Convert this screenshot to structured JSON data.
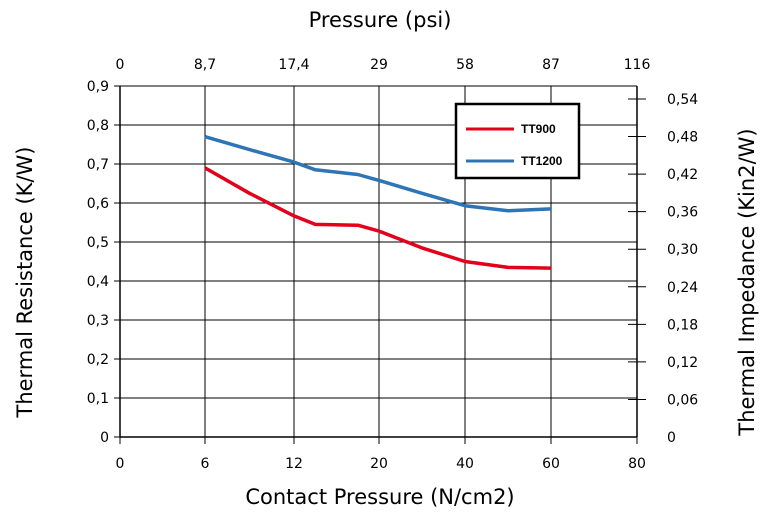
{
  "chart_data": {
    "type": "line",
    "title": "",
    "x_label": "Contact Pressure (N/cm2)",
    "x2_label": "Pressure (psi)",
    "y_label": "Thermal Resistance (K/W)",
    "y2_label": "Thermal Impedance (Kin2/W)",
    "x_tick_labels": [
      "0",
      "6",
      "12",
      "20",
      "40",
      "60",
      "80"
    ],
    "x2_tick_labels": [
      "0",
      "8,7",
      "17,4",
      "29",
      "58",
      "87",
      "116"
    ],
    "y_ticks": [
      0,
      0.1,
      0.2,
      0.3,
      0.4,
      0.5,
      0.6,
      0.7,
      0.8,
      0.9
    ],
    "y_tick_labels": [
      "0",
      "0,1",
      "0,2",
      "0,3",
      "0,4",
      "0,5",
      "0,6",
      "0,7",
      "0,8",
      "0,9"
    ],
    "y2_tick_labels": [
      "0",
      "0,06",
      "0,12",
      "0,18",
      "0,24",
      "0,30",
      "0,36",
      "0,42",
      "0,48",
      "0,54"
    ],
    "ylim": [
      0,
      0.9
    ],
    "grid": true,
    "legend_position": "top-right",
    "series": [
      {
        "name": "TT900",
        "color": "#e3001b",
        "points": [
          [
            6,
            0.69
          ],
          [
            9,
            0.625
          ],
          [
            12,
            0.567
          ],
          [
            14,
            0.545
          ],
          [
            18,
            0.543
          ],
          [
            20,
            0.528
          ],
          [
            30,
            0.485
          ],
          [
            40,
            0.45
          ],
          [
            50,
            0.435
          ],
          [
            60,
            0.433
          ]
        ]
      },
      {
        "name": "TT1200",
        "color": "#2e75b6",
        "points": [
          [
            6,
            0.77
          ],
          [
            9,
            0.737
          ],
          [
            12,
            0.705
          ],
          [
            14,
            0.685
          ],
          [
            18,
            0.673
          ],
          [
            20,
            0.658
          ],
          [
            30,
            0.625
          ],
          [
            40,
            0.593
          ],
          [
            50,
            0.58
          ],
          [
            60,
            0.585
          ]
        ]
      }
    ]
  }
}
